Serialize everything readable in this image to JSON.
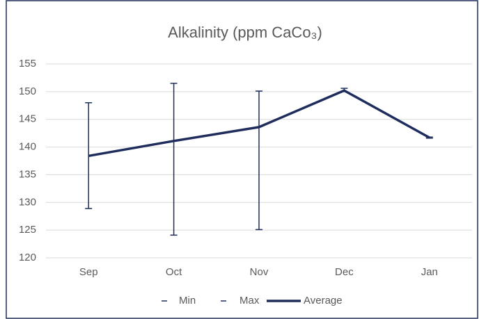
{
  "chart_data": {
    "type": "line",
    "title": "Alkalinity (ppm CaCo₃)",
    "categories": [
      "Sep",
      "Oct",
      "Nov",
      "Dec",
      "Jan"
    ],
    "series": [
      {
        "name": "Min",
        "color": "#1f2d5c",
        "values": [
          128.9,
          124.1,
          125.1,
          150.0,
          141.6
        ]
      },
      {
        "name": "Max",
        "color": "#1f2d5c",
        "values": [
          148.0,
          151.5,
          150.1,
          150.6,
          141.8
        ]
      },
      {
        "name": "Average",
        "color": "#1f2d5c",
        "values": [
          138.4,
          141.1,
          143.6,
          150.2,
          141.7
        ]
      }
    ],
    "ylim": [
      120,
      155
    ],
    "yticks": [
      120,
      125,
      130,
      135,
      140,
      145,
      150,
      155
    ],
    "grid": true
  }
}
